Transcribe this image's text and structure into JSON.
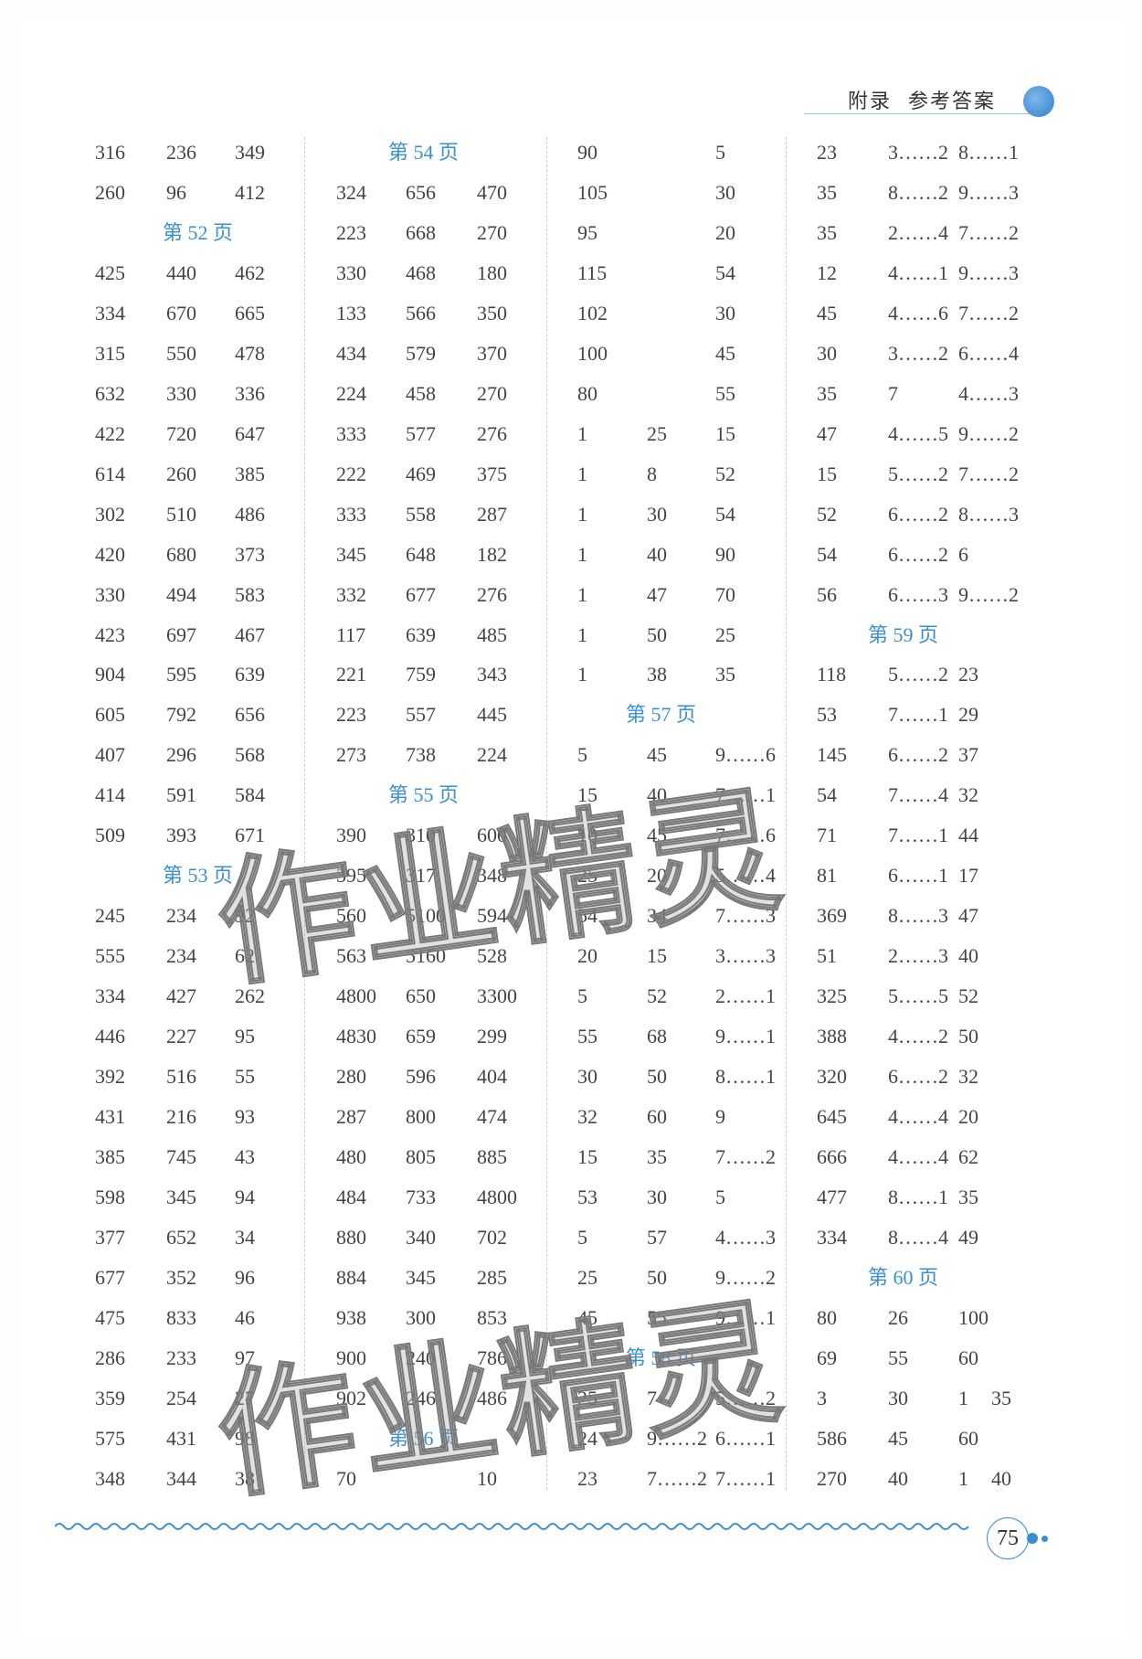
{
  "header": {
    "section": "附录",
    "title": "参考答案"
  },
  "page_number": "75",
  "watermark": "作业精灵",
  "columns": [
    [
      [
        "316",
        "236",
        "349"
      ],
      [
        "260",
        "96",
        "412"
      ],
      {
        "page": "第 52 页"
      },
      [
        "425",
        "440",
        "462"
      ],
      [
        "334",
        "670",
        "665"
      ],
      [
        "315",
        "550",
        "478"
      ],
      [
        "632",
        "330",
        "336"
      ],
      [
        "422",
        "720",
        "647"
      ],
      [
        "614",
        "260",
        "385"
      ],
      [
        "302",
        "510",
        "486"
      ],
      [
        "420",
        "680",
        "373"
      ],
      [
        "330",
        "494",
        "583"
      ],
      [
        "423",
        "697",
        "467"
      ],
      [
        "904",
        "595",
        "639"
      ],
      [
        "605",
        "792",
        "656"
      ],
      [
        "407",
        "296",
        "568"
      ],
      [
        "414",
        "591",
        "584"
      ],
      [
        "509",
        "393",
        "671"
      ],
      {
        "page": "第 53 页"
      },
      [
        "245",
        "234",
        "92"
      ],
      [
        "555",
        "234",
        "62"
      ],
      [
        "334",
        "427",
        "262"
      ],
      [
        "446",
        "227",
        "95"
      ],
      [
        "392",
        "516",
        "55"
      ],
      [
        "431",
        "216",
        "93"
      ],
      [
        "385",
        "745",
        "43"
      ],
      [
        "598",
        "345",
        "94"
      ],
      [
        "377",
        "652",
        "34"
      ],
      [
        "677",
        "352",
        "96"
      ],
      [
        "475",
        "833",
        "46"
      ],
      [
        "286",
        "233",
        "97"
      ],
      [
        "359",
        "254",
        "27"
      ],
      [
        "575",
        "431",
        "98"
      ],
      [
        "348",
        "344",
        "38"
      ]
    ],
    [
      {
        "page": "第 54 页"
      },
      [
        "324",
        "656",
        "470"
      ],
      [
        "223",
        "668",
        "270"
      ],
      [
        "330",
        "468",
        "180"
      ],
      [
        "133",
        "566",
        "350"
      ],
      [
        "434",
        "579",
        "370"
      ],
      [
        "224",
        "458",
        "270"
      ],
      [
        "333",
        "577",
        "276"
      ],
      [
        "222",
        "469",
        "375"
      ],
      [
        "333",
        "558",
        "287"
      ],
      [
        "345",
        "648",
        "182"
      ],
      [
        "332",
        "677",
        "276"
      ],
      [
        "117",
        "639",
        "485"
      ],
      [
        "221",
        "759",
        "343"
      ],
      [
        "223",
        "557",
        "445"
      ],
      [
        "273",
        "738",
        "224"
      ],
      {
        "page": "第 55 页"
      },
      [
        "390",
        "310",
        "600"
      ],
      [
        "395",
        "317",
        "348"
      ],
      [
        "560",
        "5100",
        "594"
      ],
      [
        "563",
        "5160",
        "528"
      ],
      [
        "4800",
        "650",
        "3300"
      ],
      [
        "4830",
        "659",
        "299"
      ],
      [
        "280",
        "596",
        "404"
      ],
      [
        "287",
        "800",
        "474"
      ],
      [
        "480",
        "805",
        "885"
      ],
      [
        "484",
        "733",
        "4800"
      ],
      [
        "880",
        "340",
        "702"
      ],
      [
        "884",
        "345",
        "285"
      ],
      [
        "938",
        "300",
        "853"
      ],
      [
        "900",
        "240",
        "786"
      ],
      [
        "902",
        "246",
        "486"
      ],
      {
        "page": "第 56 页"
      },
      [
        "70",
        "",
        "10"
      ]
    ],
    [
      [
        "90",
        "",
        "5"
      ],
      [
        "105",
        "",
        "30"
      ],
      [
        "95",
        "",
        "20"
      ],
      [
        "115",
        "",
        "54"
      ],
      [
        "102",
        "",
        "30"
      ],
      [
        "100",
        "",
        "45"
      ],
      [
        "80",
        "",
        "55"
      ],
      [
        "1",
        "25",
        "15"
      ],
      [
        "1",
        "8",
        "52"
      ],
      [
        "1",
        "30",
        "54"
      ],
      [
        "1",
        "40",
        "90"
      ],
      [
        "1",
        "47",
        "70"
      ],
      [
        "1",
        "50",
        "25"
      ],
      [
        "1",
        "38",
        "35"
      ],
      {
        "page": "第 57 页"
      },
      [
        "5",
        "45",
        "9……6"
      ],
      [
        "15",
        "40",
        "7……1"
      ],
      [
        "10",
        "45",
        "7……6"
      ],
      [
        "25",
        "20",
        "5……4"
      ],
      [
        "54",
        "34",
        "7……3"
      ],
      [
        "20",
        "15",
        "3……3"
      ],
      [
        "5",
        "52",
        "2……1"
      ],
      [
        "55",
        "68",
        "9……1"
      ],
      [
        "30",
        "50",
        "8……1"
      ],
      [
        "32",
        "60",
        "9"
      ],
      [
        "15",
        "35",
        "7……2"
      ],
      [
        "53",
        "30",
        "5"
      ],
      [
        "5",
        "57",
        "4……3"
      ],
      [
        "25",
        "50",
        "9……2"
      ],
      [
        "45",
        "55",
        "9……1"
      ],
      {
        "page": "第 58 页"
      },
      [
        "25",
        "7",
        "5……2"
      ],
      [
        "24",
        "9……2",
        "6……1"
      ],
      [
        "23",
        "7……2",
        "7……1"
      ]
    ],
    [
      [
        "23",
        "3……2",
        "8……1"
      ],
      [
        "35",
        "8……2",
        "9……3"
      ],
      [
        "35",
        "2……4",
        "7……2"
      ],
      [
        "12",
        "4……1",
        "9……3"
      ],
      [
        "45",
        "4……6",
        "7……2"
      ],
      [
        "30",
        "3……2",
        "6……4"
      ],
      [
        "35",
        "7",
        "4……3"
      ],
      [
        "47",
        "4……5",
        "9……2"
      ],
      [
        "15",
        "5……2",
        "7……2"
      ],
      [
        "52",
        "6……2",
        "8……3"
      ],
      [
        "54",
        "6……2",
        "6"
      ],
      [
        "56",
        "6……3",
        "9……2"
      ],
      {
        "page": "第 59 页"
      },
      [
        "118",
        "5……2",
        "23"
      ],
      [
        "53",
        "7……1",
        "29"
      ],
      [
        "145",
        "6……2",
        "37"
      ],
      [
        "54",
        "7……4",
        "32"
      ],
      [
        "71",
        "7……1",
        "44"
      ],
      [
        "81",
        "6……1",
        "17"
      ],
      [
        "369",
        "8……3",
        "47"
      ],
      [
        "51",
        "2……3",
        "40"
      ],
      [
        "325",
        "5……5",
        "52"
      ],
      [
        "388",
        "4……2",
        "50"
      ],
      [
        "320",
        "6……2",
        "32"
      ],
      [
        "645",
        "4……4",
        "20"
      ],
      [
        "666",
        "4……4",
        "62"
      ],
      [
        "477",
        "8……1",
        "35"
      ],
      [
        "334",
        "8……4",
        "49"
      ],
      {
        "page": "第 60 页"
      },
      [
        "80",
        "26",
        "100"
      ],
      [
        "69",
        "55",
        "60"
      ],
      [
        "3",
        "30",
        "1",
        "35"
      ],
      [
        "586",
        "45",
        "60"
      ],
      [
        "270",
        "40",
        "1",
        "40"
      ]
    ]
  ]
}
